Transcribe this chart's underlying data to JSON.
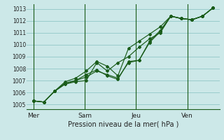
{
  "background_color": "#cce8e8",
  "grid_color": "#99cccc",
  "line_color": "#1a5c1a",
  "xlabel": "Pression niveau de la mer( hPa )",
  "ylim": [
    1004.6,
    1013.4
  ],
  "yticks": [
    1005,
    1006,
    1007,
    1008,
    1009,
    1010,
    1011,
    1012,
    1013
  ],
  "xtick_labels": [
    "Mer",
    "Sam",
    "Jeu",
    "Ven"
  ],
  "day_positions": [
    0,
    4,
    8,
    12
  ],
  "series": [
    [
      1005.3,
      1005.2,
      1006.1,
      1006.7,
      1007.0,
      1007.3,
      1007.8,
      1007.5,
      1007.2,
      1008.5,
      1008.7,
      1010.2,
      1011.1,
      1012.4,
      1012.2,
      1012.1,
      1012.4,
      1013.1
    ],
    [
      1005.3,
      1005.2,
      1006.1,
      1006.7,
      1006.9,
      1007.0,
      1008.5,
      1007.8,
      1008.5,
      1009.0,
      1009.8,
      1010.5,
      1011.0,
      1012.4,
      1012.2,
      1012.1,
      1012.4,
      1013.1
    ],
    [
      1005.3,
      1005.2,
      1006.1,
      1006.8,
      1007.0,
      1007.5,
      1007.9,
      1007.4,
      1007.1,
      1008.6,
      1008.7,
      1010.3,
      1011.2,
      1012.4,
      1012.2,
      1012.1,
      1012.4,
      1013.1
    ],
    [
      1005.3,
      1005.2,
      1006.1,
      1006.9,
      1007.2,
      1007.8,
      1008.6,
      1008.2,
      1007.4,
      1009.7,
      1010.3,
      1010.9,
      1011.5,
      1012.4,
      1012.2,
      1012.1,
      1012.4,
      1013.1
    ]
  ],
  "n_points": 18
}
